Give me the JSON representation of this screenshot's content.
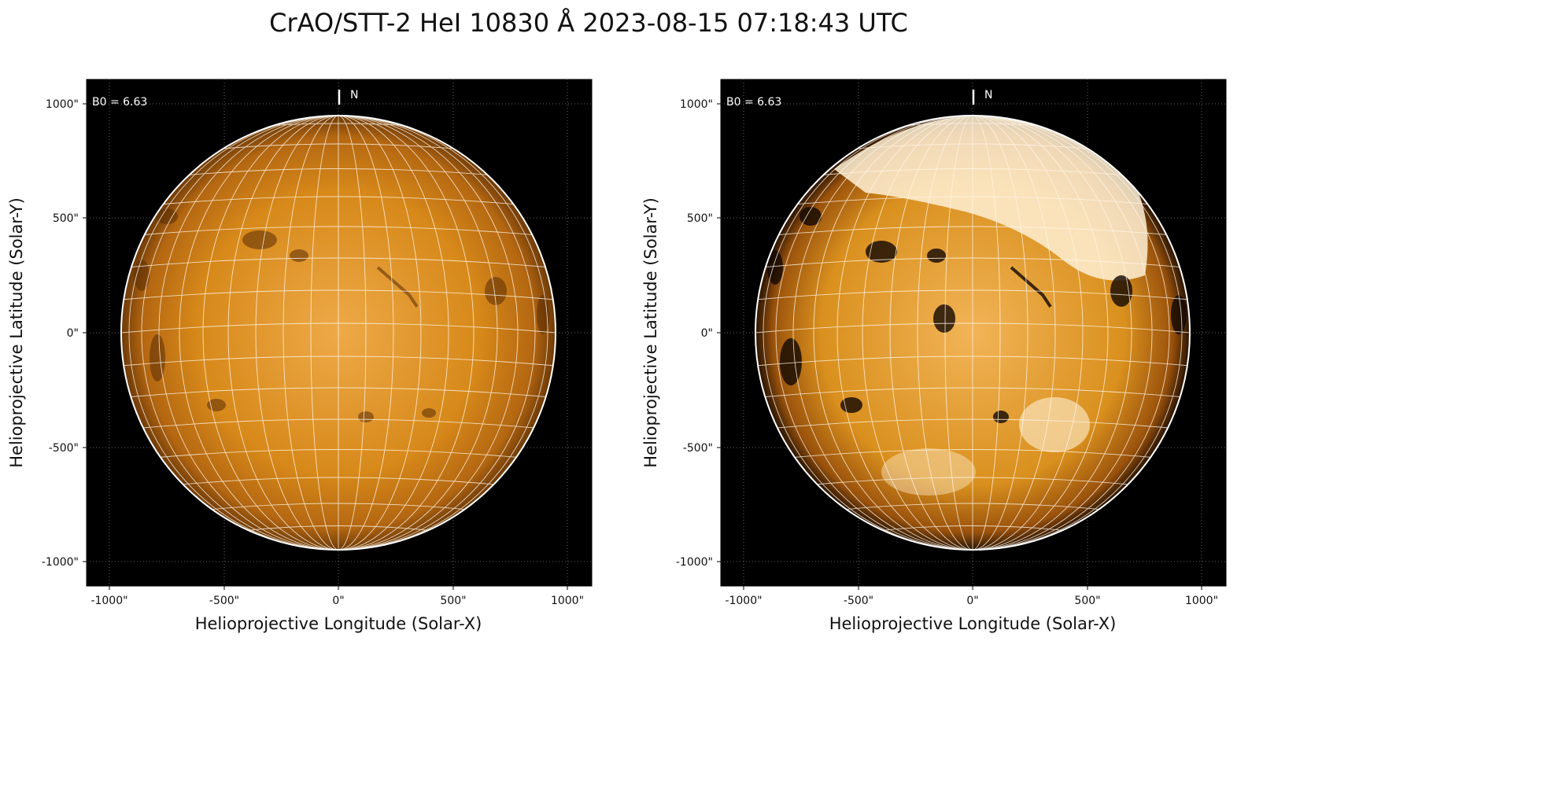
{
  "figure": {
    "title": "CrAO/STT-2 HeI 10830 Å 2023-08-15 07:18:43 UTC"
  },
  "panels": [
    {
      "xlabel": "Helioprojective Longitude (Solar-X)",
      "ylabel": "Helioprojective Latitude (Solar-Y)",
      "b0_label": "B0 = 6.63",
      "north_label": "N",
      "x_ticks": [
        "-1000\"",
        "-500\"",
        "0\"",
        "500\"",
        "1000\""
      ],
      "y_ticks": [
        "1000\"",
        "500\"",
        "0\"",
        "-500\"",
        "-1000\""
      ],
      "image_style": "normal contrast",
      "colors": {
        "sun": "#d7891a",
        "sun_highlight": "#f2b257",
        "sun_limb": "#8f4d0a",
        "background": "#000000",
        "grid": "#ffffff"
      }
    },
    {
      "xlabel": "Helioprojective Longitude (Solar-X)",
      "ylabel": "Helioprojective Latitude (Solar-Y)",
      "b0_label": "B0 = 6.63",
      "north_label": "N",
      "x_ticks": [
        "-1000\"",
        "-500\"",
        "0\"",
        "500\"",
        "1000\""
      ],
      "y_ticks": [
        "1000\"",
        "500\"",
        "0\"",
        "-500\"",
        "-1000\""
      ],
      "image_style": "enhanced contrast",
      "colors": {
        "sun": "#d9901e",
        "sun_highlight": "#fff3d8",
        "sun_limb": "#1a0d02",
        "background": "#000000",
        "grid": "#ffffff"
      }
    }
  ]
}
